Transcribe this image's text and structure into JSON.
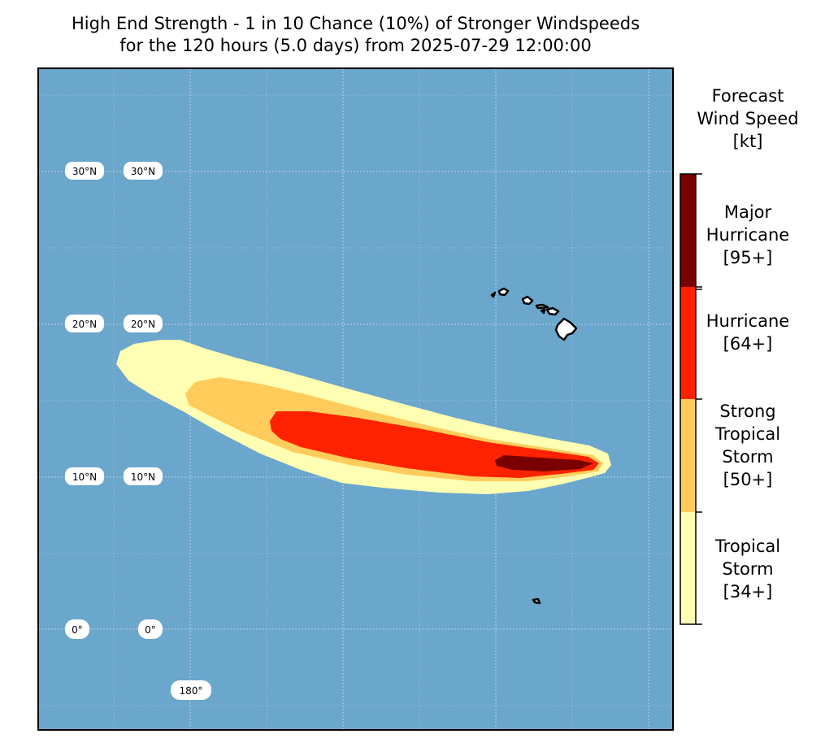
{
  "title": {
    "line1": "High End Strength - 1 in 10 Chance (10%) of Stronger Windspeeds",
    "line2": "for the 120 hours (5.0 days) from 2025-07-29 12:00:00"
  },
  "map": {
    "ocean_color": "#6ba6cc",
    "land_color": "#ffffff",
    "grid_color": "#c9d9e6",
    "lat_labels": [
      "30°N",
      "20°N",
      "10°N",
      "0°"
    ],
    "lon_labels": [
      "180°"
    ]
  },
  "colorbar": {
    "title_lines": [
      "Forecast",
      "Wind Speed",
      "[kt]"
    ],
    "categories": [
      {
        "lines": [
          "Major",
          "Hurricane",
          "[95+]"
        ],
        "color": "#7a0000"
      },
      {
        "lines": [
          "Hurricane",
          "[64+]"
        ],
        "color": "#ff2200"
      },
      {
        "lines": [
          "Strong",
          "Tropical",
          "Storm",
          "[50+]"
        ],
        "color": "#ffcc5c"
      },
      {
        "lines": [
          "Tropical",
          "Storm",
          "[34+]"
        ],
        "color": "#ffffb3"
      }
    ]
  }
}
